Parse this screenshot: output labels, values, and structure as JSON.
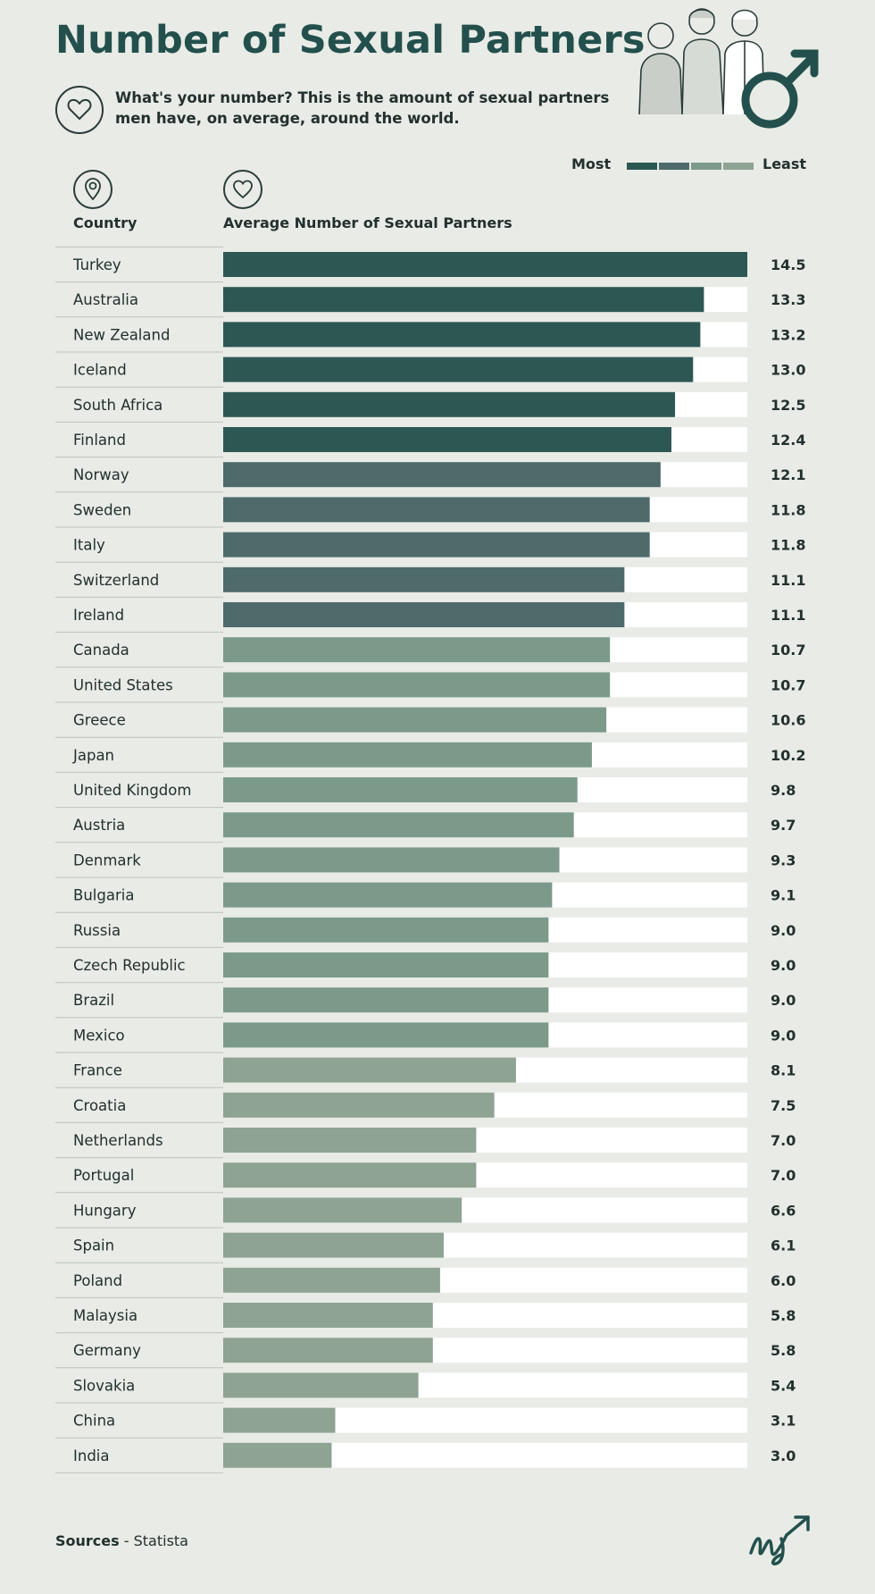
{
  "title": "Number of Sexual Partners",
  "subtitle": "What's your number? This is the amount of sexual partners men have, on average, around the world.",
  "legend": {
    "most": "Most",
    "least": "Least",
    "colors": [
      "#2d5753",
      "#4e6a6b",
      "#7c9a8a",
      "#8fa393"
    ]
  },
  "columns": {
    "country": "Country",
    "partners": "Average Number of Sexual Partners"
  },
  "icons": {
    "subtitle": "heart-icon",
    "country": "location-pin-icon",
    "partners": "heart-icon",
    "illustration": "male-symbol-icon",
    "logo": "signature-logo-icon"
  },
  "sources": {
    "label": "Sources",
    "separator": " - ",
    "value": "Statista"
  },
  "colors": {
    "background": "#e8ebe6",
    "title": "#23504c",
    "track": "#ffffff",
    "divider": "#bcc3bc"
  },
  "chart_data": {
    "type": "bar",
    "orientation": "horizontal",
    "xlim": [
      0,
      14.5
    ],
    "categories": [
      "Turkey",
      "Australia",
      "New Zealand",
      "Iceland",
      "South Africa",
      "Finland",
      "Norway",
      "Sweden",
      "Italy",
      "Switzerland",
      "Ireland",
      "Canada",
      "United States",
      "Greece",
      "Japan",
      "United Kingdom",
      "Austria",
      "Denmark",
      "Bulgaria",
      "Russia",
      "Czech Republic",
      "Brazil",
      "Mexico",
      "France",
      "Croatia",
      "Netherlands",
      "Portugal",
      "Hungary",
      "Spain",
      "Poland",
      "Malaysia",
      "Germany",
      "Slovakia",
      "China",
      "India"
    ],
    "values": [
      14.5,
      13.3,
      13.2,
      13.0,
      12.5,
      12.4,
      12.1,
      11.8,
      11.8,
      11.1,
      11.1,
      10.7,
      10.7,
      10.6,
      10.2,
      9.8,
      9.7,
      9.3,
      9.1,
      9.0,
      9.0,
      9.0,
      9.0,
      8.1,
      7.5,
      7.0,
      7.0,
      6.6,
      6.1,
      6.0,
      5.8,
      5.8,
      5.4,
      3.1,
      3.0
    ],
    "labels": [
      "14.5",
      "13.3",
      "13.2",
      "13.0",
      "12.5",
      "12.4",
      "12.1",
      "11.8",
      "11.8",
      "11.1",
      "11.1",
      "10.7",
      "10.7",
      "10.6",
      "10.2",
      "9.8",
      "9.7",
      "9.3",
      "9.1",
      "9.0",
      "9.0",
      "9.0",
      "9.0",
      "8.1",
      "7.5",
      "7.0",
      "7.0",
      "6.6",
      "6.1",
      "6.0",
      "5.8",
      "5.8",
      "5.4",
      "3.1",
      "3.0"
    ],
    "bar_colors": [
      "#2d5753",
      "#2d5753",
      "#2d5753",
      "#2d5753",
      "#2d5753",
      "#2d5753",
      "#4e6a6b",
      "#4e6a6b",
      "#4e6a6b",
      "#4e6a6b",
      "#4e6a6b",
      "#7c9a8a",
      "#7c9a8a",
      "#7c9a8a",
      "#7c9a8a",
      "#7c9a8a",
      "#7c9a8a",
      "#7c9a8a",
      "#7c9a8a",
      "#7c9a8a",
      "#7c9a8a",
      "#7c9a8a",
      "#7c9a8a",
      "#8fa393",
      "#8fa393",
      "#8fa393",
      "#8fa393",
      "#8fa393",
      "#8fa393",
      "#8fa393",
      "#8fa393",
      "#8fa393",
      "#8fa393",
      "#8fa393",
      "#8fa393"
    ],
    "grid": false,
    "legend_position": "top-right"
  }
}
